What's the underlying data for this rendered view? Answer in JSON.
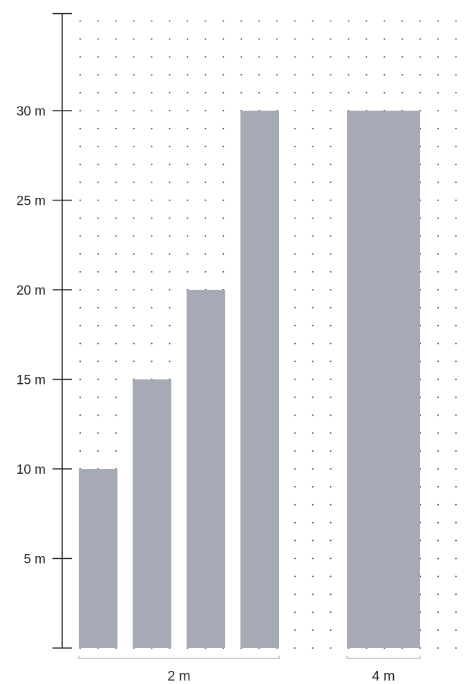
{
  "chart_data": {
    "type": "bar",
    "title": "",
    "xlabel": "",
    "ylabel": "",
    "ylim": [
      0,
      36
    ],
    "y_ticks": [
      {
        "value": 5,
        "label": "5 m"
      },
      {
        "value": 10,
        "label": "10 m"
      },
      {
        "value": 15,
        "label": "15 m"
      },
      {
        "value": 20,
        "label": "20 m"
      },
      {
        "value": 25,
        "label": "25 m"
      },
      {
        "value": 30,
        "label": "30 m"
      }
    ],
    "groups": [
      {
        "label": "2 m",
        "bar_values": [
          10,
          15,
          20,
          30
        ]
      },
      {
        "label": "4 m",
        "bar_values": [
          30
        ]
      }
    ],
    "background": "dot-grid",
    "colors": {
      "bar": "#a5aab4",
      "axis": "#222222",
      "dots": "#444444",
      "group_bracket": "#b9bdc4"
    }
  }
}
